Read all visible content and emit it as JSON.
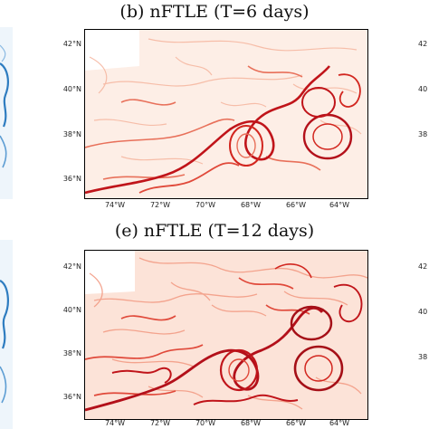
{
  "panels": [
    {
      "id": "b",
      "title": "(b) nFTLE (T=6 days)",
      "lat_ticks": [
        "42°N",
        "40°N",
        "38°N",
        "36°N"
      ],
      "lon_ticks": [
        "74°W",
        "72°W",
        "70°W",
        "68°W",
        "66°W",
        "64°W"
      ]
    },
    {
      "id": "e",
      "title": "(e) nFTLE (T=12 days)",
      "lat_ticks": [
        "42°N",
        "40°N",
        "38°N",
        "36°N"
      ],
      "lon_ticks": [
        "74°W",
        "72°W",
        "70°W",
        "68°W",
        "66°W",
        "64°W"
      ]
    }
  ],
  "right_edge_labels": {
    "top": [
      "42",
      "40",
      "38"
    ],
    "bottom": [
      "42",
      "40",
      "38"
    ]
  },
  "colors": {
    "ridge_dark": "#c0141a",
    "ridge_mid": "#e0493a",
    "ridge_light": "#f4a58e",
    "background_wash": "#fde6dc",
    "left_panel_blue": "#1f6fb5",
    "left_panel_light": "#cfe3f3"
  }
}
